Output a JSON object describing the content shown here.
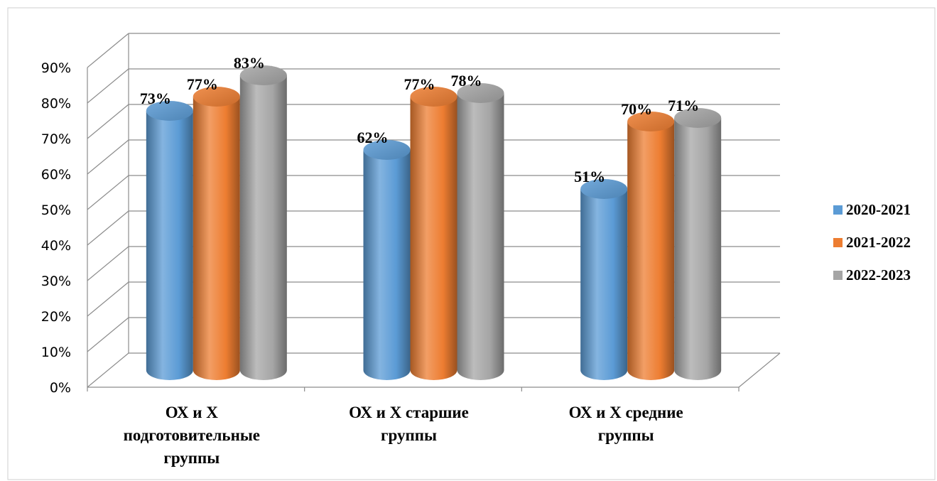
{
  "chart_data": {
    "type": "bar",
    "variant": "3d-cylinder",
    "title": "",
    "xlabel": "",
    "ylabel": "",
    "ylim": [
      0,
      90
    ],
    "y_ticks": [
      "0%",
      "10%",
      "20%",
      "30%",
      "40%",
      "50%",
      "60%",
      "70%",
      "80%",
      "90%"
    ],
    "categories": [
      [
        "ОХ и Х",
        "подготовительные",
        "группы"
      ],
      [
        "ОХ и Х старшие",
        "группы"
      ],
      [
        "ОХ и Х средние",
        "группы"
      ]
    ],
    "series": [
      {
        "name": "2020-2021",
        "values": [
          73,
          62,
          51
        ],
        "labels": [
          "73%",
          "62%",
          "51%"
        ]
      },
      {
        "name": "2021-2022",
        "values": [
          77,
          77,
          70
        ],
        "labels": [
          "77%",
          "77%",
          "70%"
        ]
      },
      {
        "name": "2022-2023",
        "values": [
          83,
          78,
          71
        ],
        "labels": [
          "83%",
          "78%",
          "71%"
        ]
      }
    ],
    "colors": [
      "#5B9BD5",
      "#ED7D31",
      "#A5A5A5"
    ],
    "grid": true,
    "legend": "right"
  }
}
